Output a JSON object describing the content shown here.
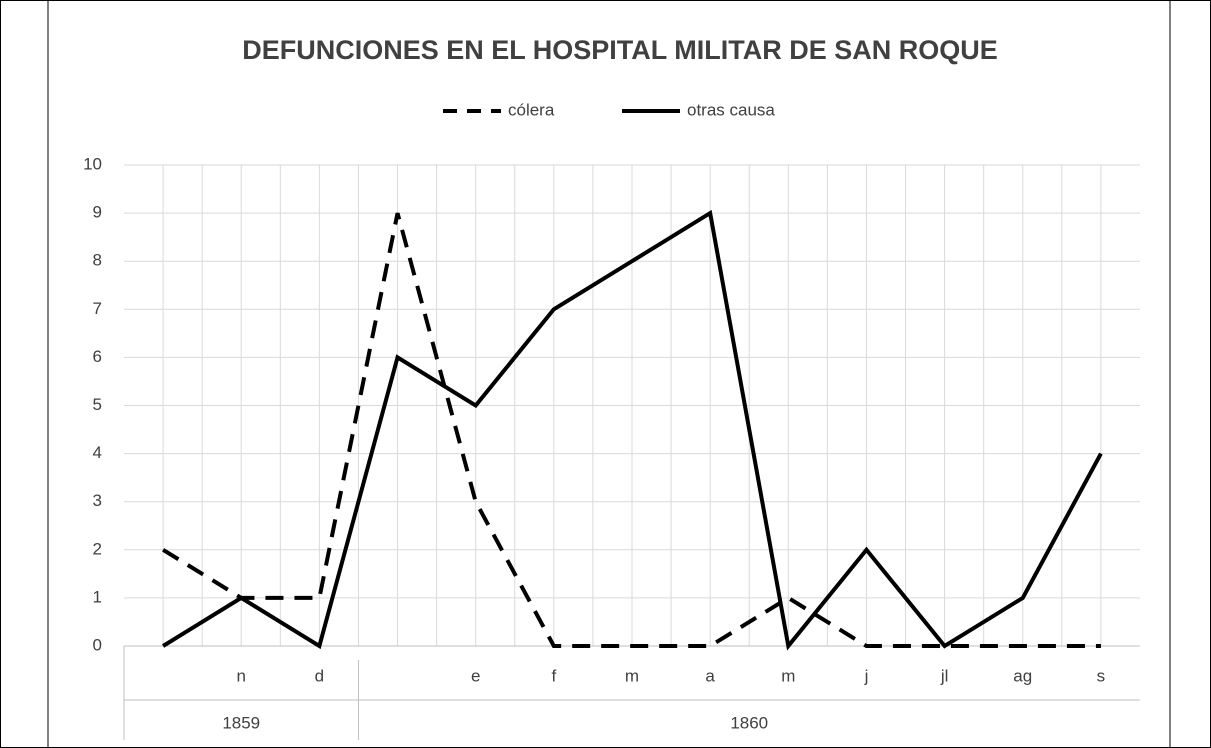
{
  "chart_data": {
    "type": "line",
    "title": "DEFUNCIONES EN EL HOSPITAL MILITAR DE SAN ROQUE",
    "categories": [
      null,
      "n",
      "d",
      null,
      "e",
      "f",
      "m",
      "a",
      "m",
      "j",
      "jl",
      "ag",
      "s"
    ],
    "groups": [
      {
        "label": "1859",
        "span": 3
      },
      {
        "label": "1860",
        "span": 10
      }
    ],
    "series": [
      {
        "name": "cólera",
        "color": "#000000",
        "dash": true,
        "values": [
          2,
          1,
          1,
          9,
          3,
          0,
          0,
          0,
          1,
          0,
          0,
          0,
          0
        ]
      },
      {
        "name": "otras causa",
        "color": "#000000",
        "dash": false,
        "values": [
          0,
          1,
          0,
          6,
          5,
          7,
          8,
          9,
          0,
          2,
          0,
          1,
          4
        ]
      }
    ],
    "ylim": [
      0,
      10
    ],
    "yticks": [
      0,
      1,
      2,
      3,
      4,
      5,
      6,
      7,
      8,
      9,
      10
    ],
    "grid": true,
    "legend": "top"
  }
}
